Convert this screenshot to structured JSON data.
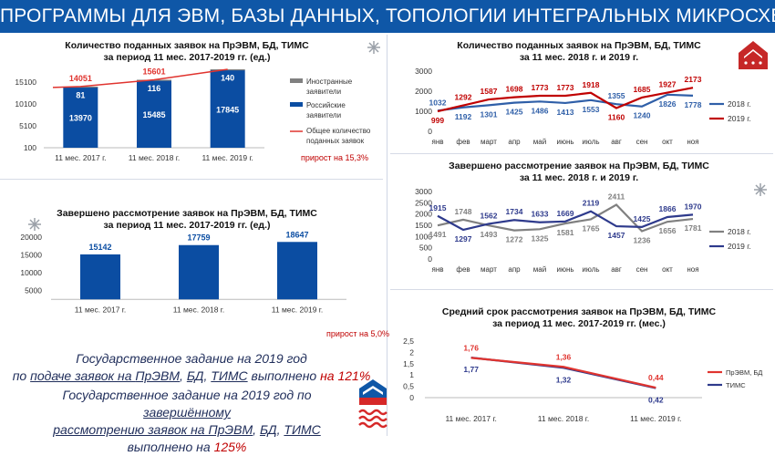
{
  "header": {
    "title": "ПРОГРАММЫ ДЛЯ ЭВМ, БАЗЫ ДАННЫХ, ТОПОЛОГИИ ИНТЕГРАЛЬНЫХ МИКРОСХЕМ"
  },
  "colors": {
    "brand": "#0f57a7",
    "dark_blue": "#0b4da2",
    "navy": "#2e3a8c",
    "red": "#c00000",
    "grey": "#808080"
  },
  "chart_data": [
    {
      "id": "applications_2017_2019",
      "type": "bar",
      "title_line1": "Количество поданных заявок на ПрЭВМ, БД, ТИМС",
      "title_line2": "за период 11 мес. 2017-2019 гг. (ед.)",
      "categories": [
        "11 мес. 2017 г.",
        "11 мес. 2018 г.",
        "11 мес. 2019 г."
      ],
      "series": [
        {
          "name": "Иностранные заявители",
          "values": [
            81,
            116,
            140
          ],
          "color": "#808080"
        },
        {
          "name": "Российские заявители",
          "values": [
            13970,
            15485,
            17845
          ],
          "color": "#0b4da2"
        },
        {
          "name": "Общее количество поданных заявок",
          "values": [
            14051,
            15601,
            17985
          ],
          "color": "#e0342f",
          "kind": "line"
        }
      ],
      "yticks": [
        "100",
        "5100",
        "10100",
        "15100"
      ],
      "ylim": [
        100,
        17985
      ],
      "legend": "right",
      "note": "прирост на 15,3%"
    },
    {
      "id": "applications_monthly",
      "type": "line",
      "title_line1": "Количество поданных заявок на ПрЭВМ, БД, ТИМС",
      "title_line2": "за 11 мес. 2018 г. и 2019 г.",
      "categories": [
        "янв",
        "фев",
        "март",
        "апр",
        "май",
        "июнь",
        "июль",
        "авг",
        "сен",
        "окт",
        "ноя"
      ],
      "series": [
        {
          "name": "2018 г.",
          "values": [
            1032,
            1192,
            1301,
            1425,
            1486,
            1413,
            1553,
            1355,
            1240,
            1826,
            1778
          ],
          "color": "#2f5fa8"
        },
        {
          "name": "2019 г.",
          "values": [
            999,
            1292,
            1587,
            1698,
            1773,
            1773,
            1918,
            1160,
            1685,
            1927,
            2173
          ],
          "color": "#c00000"
        }
      ],
      "yticks": [
        "0",
        "1000",
        "2000",
        "3000"
      ],
      "ylim": [
        0,
        3000
      ],
      "legend": "right"
    },
    {
      "id": "completed_2017_2019",
      "type": "bar",
      "title_line1": "Завершено рассмотрение заявок на ПрЭВМ, БД, ТИМС",
      "title_line2": "за период 11 мес. 2017-2019 гг. (ед.)",
      "categories": [
        "11 мес. 2017 г.",
        "11 мес. 2018 г.",
        "11 мес. 2019 г."
      ],
      "values": [
        15142,
        17759,
        18647
      ],
      "color": "#0b4da2",
      "yticks": [
        "5000",
        "10000",
        "15000",
        "20000"
      ],
      "ylim": [
        0,
        20000
      ],
      "note": "прирост на 5,0%"
    },
    {
      "id": "completed_monthly",
      "type": "line",
      "title_line1": "Завершено рассмотрение заявок на ПрЭВМ, БД, ТИМС",
      "title_line2": "за 11 мес. 2018 г. и 2019 г.",
      "categories": [
        "янв",
        "фев",
        "март",
        "апр",
        "май",
        "июнь",
        "июль",
        "авг",
        "сен",
        "окт",
        "ноя"
      ],
      "series": [
        {
          "name": "2018 г.",
          "values": [
            1491,
            1748,
            1493,
            1272,
            1325,
            1581,
            1765,
            2411,
            1236,
            1656,
            1781
          ],
          "color": "#808080"
        },
        {
          "name": "2019 г.",
          "values": [
            1915,
            1297,
            1562,
            1734,
            1633,
            1669,
            2119,
            1457,
            1425,
            1866,
            1970
          ],
          "color": "#2e3a8c"
        }
      ],
      "yticks": [
        "0",
        "500",
        "1000",
        "1500",
        "2000",
        "2500",
        "3000"
      ],
      "ylim": [
        0,
        3000
      ],
      "legend": "right"
    },
    {
      "id": "avg_term",
      "type": "line",
      "title_line1": "Средний срок рассмотрения заявок на ПрЭВМ, БД, ТИМС",
      "title_line2": "за период 11 мес. 2017-2019 гг. (мес.)",
      "categories": [
        "11 мес. 2017 г.",
        "11 мес. 2018 г.",
        "11 мес. 2019 г."
      ],
      "series": [
        {
          "name": "ПрЭВМ, БД",
          "values": [
            1.76,
            1.36,
            0.44
          ],
          "labels": [
            "1,76",
            "1,36",
            "0,44"
          ],
          "color": "#e0342f"
        },
        {
          "name": "ТИМС",
          "values": [
            1.77,
            1.32,
            0.42
          ],
          "labels": [
            "1,77",
            "1,32",
            "0,42"
          ],
          "color": "#2e3a8c"
        }
      ],
      "yticks": [
        "0",
        "0,5",
        "1",
        "1,5",
        "2",
        "2,5"
      ],
      "ylim": [
        0,
        2.5
      ],
      "legend": "right"
    }
  ],
  "gov": {
    "l1": "Государственное задание на 2019 год",
    "l2a": "по ",
    "l2b": "подаче заявок на ",
    "l2c": "ПрЭВМ",
    "l2d": ", ",
    "l2e": "БД",
    "l2f": ", ",
    "l2g": "ТИМС",
    "l2h": " выполнено ",
    "l2i": "на 121%",
    "l3a": "Государственное задание на 2019 год по ",
    "l3b": "завершённому",
    "l4a": "рассмотрению заявок на ",
    "l4b": "ПрЭВМ",
    "l4c": ", ",
    "l4d": "БД",
    "l4e": ", ",
    "l4f": "ТИМС",
    "l5a": "выполнено на ",
    "l5b": "125%"
  }
}
